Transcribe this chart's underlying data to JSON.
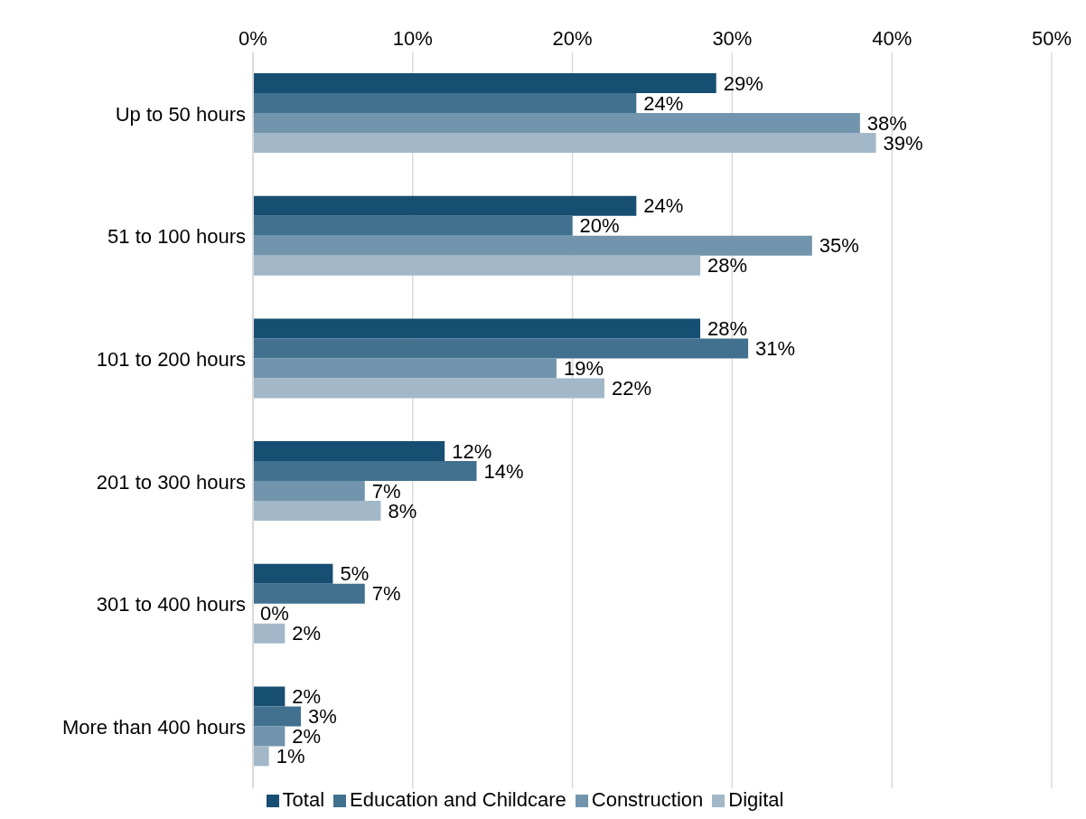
{
  "chart_data": {
    "type": "bar",
    "orientation": "horizontal",
    "categories": [
      "Up to 50 hours",
      "51 to 100 hours",
      "101 to 200 hours",
      "201 to 300 hours",
      "301 to 400 hours",
      "More than 400 hours"
    ],
    "series": [
      {
        "name": "Total",
        "color": "#174f73",
        "values": [
          29,
          24,
          28,
          12,
          5,
          2
        ],
        "value_labels": [
          "29%",
          "24%",
          "28%",
          "12%",
          "5%",
          "2%"
        ]
      },
      {
        "name": "Education and Childcare",
        "color": "#41718f",
        "values": [
          24,
          20,
          31,
          14,
          7,
          3
        ],
        "value_labels": [
          "24%",
          "20%",
          "31%",
          "14%",
          "7%",
          "3%"
        ]
      },
      {
        "name": "Construction",
        "color": "#7294ad",
        "values": [
          38,
          35,
          19,
          7,
          0,
          2
        ],
        "value_labels": [
          "38%",
          "35%",
          "19%",
          "7%",
          "0%",
          "2%"
        ]
      },
      {
        "name": "Digital",
        "color": "#a2b8c8",
        "values": [
          39,
          28,
          22,
          8,
          2,
          1
        ],
        "value_labels": [
          "39%",
          "28%",
          "22%",
          "8%",
          "2%",
          "1%"
        ]
      }
    ],
    "xlim": [
      0,
      50
    ],
    "xticks": [
      {
        "value": 0,
        "label": "0%"
      },
      {
        "value": 10,
        "label": "10%"
      },
      {
        "value": 20,
        "label": "20%"
      },
      {
        "value": 30,
        "label": "30%"
      },
      {
        "value": 40,
        "label": "40%"
      },
      {
        "value": 50,
        "label": "50%"
      }
    ],
    "grid": "x",
    "legend": "bottom"
  }
}
